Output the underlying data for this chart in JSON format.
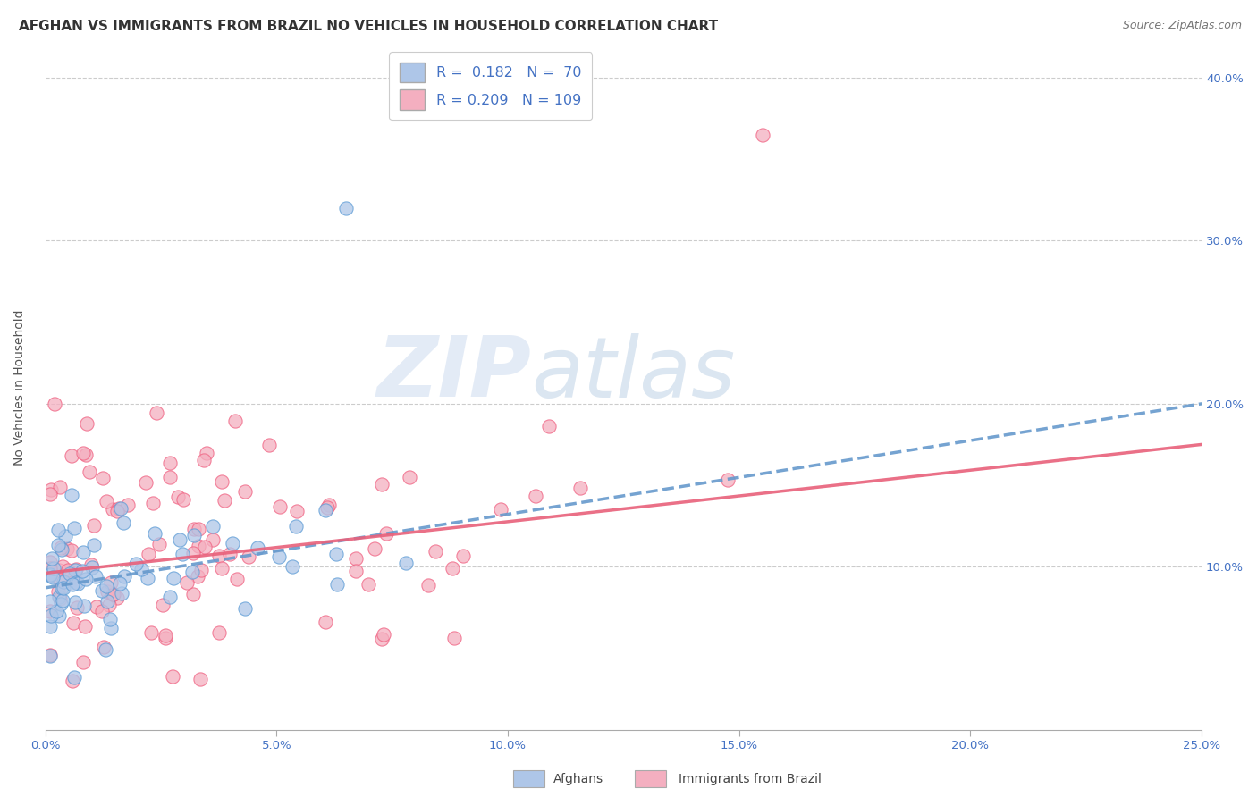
{
  "title": "AFGHAN VS IMMIGRANTS FROM BRAZIL NO VEHICLES IN HOUSEHOLD CORRELATION CHART",
  "source": "Source: ZipAtlas.com",
  "ylabel": "No Vehicles in Household",
  "xlim": [
    0.0,
    0.25
  ],
  "ylim": [
    0.0,
    0.42
  ],
  "xticks": [
    0.0,
    0.05,
    0.1,
    0.15,
    0.2,
    0.25
  ],
  "yticks": [
    0.1,
    0.2,
    0.3,
    0.4
  ],
  "xtick_labels": [
    "0.0%",
    "5.0%",
    "10.0%",
    "15.0%",
    "20.0%",
    "25.0%"
  ],
  "ytick_labels": [
    "10.0%",
    "20.0%",
    "30.0%",
    "40.0%"
  ],
  "legend_labels": [
    "Afghans",
    "Immigrants from Brazil"
  ],
  "r_afghan": 0.182,
  "n_afghan": 70,
  "r_brazil": 0.209,
  "n_brazil": 109,
  "color_afghan": "#aec6e8",
  "color_brazil": "#f4afc0",
  "color_afghan_line": "#6699cc",
  "color_brazil_line": "#e8607a",
  "color_afghan_dark": "#5b9bd5",
  "color_brazil_dark": "#f06080",
  "watermark_zip": "ZIP",
  "watermark_atlas": "atlas",
  "background_color": "#ffffff",
  "grid_color": "#cccccc",
  "title_fontsize": 11,
  "tick_fontsize": 9.5,
  "seed": 42,
  "line_afghan_start_y": 0.087,
  "line_afghan_end_y": 0.2,
  "line_brazil_start_y": 0.096,
  "line_brazil_end_y": 0.175
}
